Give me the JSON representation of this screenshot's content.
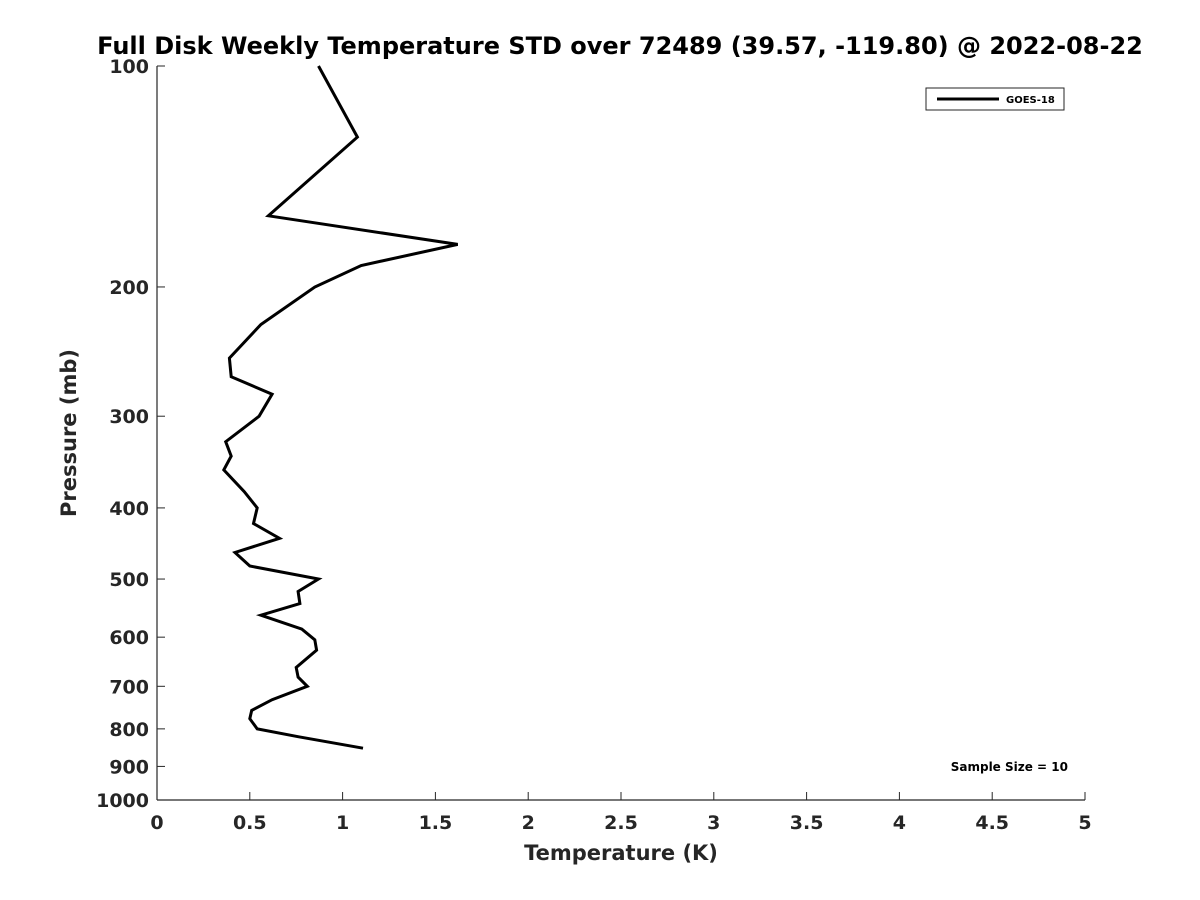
{
  "chart_data": {
    "type": "line",
    "title": "Full Disk Weekly Temperature STD over 72489 (39.57, -119.80) @ 2022-08-22",
    "xlabel": "Temperature (K)",
    "ylabel": "Pressure (mb)",
    "xlim": [
      0,
      5
    ],
    "ylim": [
      100,
      1000
    ],
    "yscale": "log",
    "y_reversed": true,
    "grid": false,
    "legend_position": "top-right",
    "x_ticks": [
      0,
      0.5,
      1,
      1.5,
      2,
      2.5,
      3,
      3.5,
      4,
      4.5,
      5
    ],
    "x_tick_labels": [
      "0",
      "0.5",
      "1",
      "1.5",
      "2",
      "2.5",
      "3",
      "3.5",
      "4",
      "4.5",
      "5"
    ],
    "y_ticks": [
      100,
      200,
      300,
      400,
      500,
      600,
      700,
      800,
      900,
      1000
    ],
    "y_tick_labels": [
      "100",
      "200",
      "300",
      "400",
      "500",
      "600",
      "700",
      "800",
      "900",
      "1000"
    ],
    "series": [
      {
        "name": "GOES-18",
        "color": "#000000",
        "points": [
          {
            "x": 0.87,
            "p": 100
          },
          {
            "x": 1.08,
            "p": 125
          },
          {
            "x": 0.6,
            "p": 160
          },
          {
            "x": 1.62,
            "p": 175
          },
          {
            "x": 1.1,
            "p": 187
          },
          {
            "x": 0.85,
            "p": 200
          },
          {
            "x": 0.56,
            "p": 225
          },
          {
            "x": 0.39,
            "p": 250
          },
          {
            "x": 0.4,
            "p": 265
          },
          {
            "x": 0.62,
            "p": 280
          },
          {
            "x": 0.55,
            "p": 300
          },
          {
            "x": 0.37,
            "p": 325
          },
          {
            "x": 0.4,
            "p": 340
          },
          {
            "x": 0.36,
            "p": 355
          },
          {
            "x": 0.47,
            "p": 380
          },
          {
            "x": 0.54,
            "p": 400
          },
          {
            "x": 0.52,
            "p": 420
          },
          {
            "x": 0.66,
            "p": 440
          },
          {
            "x": 0.42,
            "p": 460
          },
          {
            "x": 0.5,
            "p": 480
          },
          {
            "x": 0.87,
            "p": 500
          },
          {
            "x": 0.76,
            "p": 520
          },
          {
            "x": 0.77,
            "p": 540
          },
          {
            "x": 0.56,
            "p": 560
          },
          {
            "x": 0.78,
            "p": 585
          },
          {
            "x": 0.85,
            "p": 605
          },
          {
            "x": 0.86,
            "p": 625
          },
          {
            "x": 0.75,
            "p": 660
          },
          {
            "x": 0.76,
            "p": 680
          },
          {
            "x": 0.81,
            "p": 700
          },
          {
            "x": 0.62,
            "p": 730
          },
          {
            "x": 0.51,
            "p": 755
          },
          {
            "x": 0.5,
            "p": 775
          },
          {
            "x": 0.54,
            "p": 800
          },
          {
            "x": 0.76,
            "p": 820
          },
          {
            "x": 1.11,
            "p": 850
          }
        ]
      }
    ],
    "annotations": [
      {
        "text": "Sample Size = 10",
        "position": "bottom-right"
      }
    ]
  }
}
